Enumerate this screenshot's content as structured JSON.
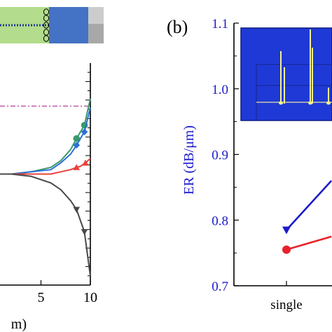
{
  "panel_b_label": "(b)",
  "chart_data": [
    {
      "panel": "a",
      "type": "line",
      "title": "",
      "xlabel": "m)",
      "ylabel": "",
      "x_ticks": [
        5,
        10
      ],
      "xlim": [
        0,
        10
      ],
      "ylim": [
        0,
        1
      ],
      "y_tick_count_right": 24,
      "threshold": {
        "y": 0.806,
        "color": "#b0409a",
        "style": "dash-dot"
      },
      "series": [
        {
          "color": "#3a9a6a",
          "marker": "circle",
          "x": [
            0,
            2,
            4,
            6,
            7,
            8,
            8.6,
            9,
            9.4,
            10
          ],
          "y": [
            0.5,
            0.5,
            0.51,
            0.53,
            0.56,
            0.61,
            0.66,
            0.69,
            0.72,
            0.84
          ],
          "marker_x": [
            8.6,
            9.4
          ]
        },
        {
          "color": "#2b6fd6",
          "marker": "diamond",
          "x": [
            0,
            2,
            4,
            6,
            7,
            8,
            8.6,
            9,
            9.4,
            10
          ],
          "y": [
            0.5,
            0.5,
            0.51,
            0.52,
            0.55,
            0.59,
            0.63,
            0.66,
            0.69,
            0.8
          ],
          "marker_x": [
            8.6,
            9.4
          ]
        },
        {
          "color": "#e8413c",
          "marker": "triangle-up",
          "x": [
            0,
            2,
            4,
            6,
            7,
            8,
            8.6,
            9,
            9.5,
            10
          ],
          "y": [
            0.5,
            0.5,
            0.5,
            0.5,
            0.51,
            0.52,
            0.53,
            0.535,
            0.55,
            0.57
          ],
          "marker_x": [
            8.6,
            9.5
          ]
        },
        {
          "color": "#484848",
          "marker": "triangle-down",
          "x": [
            0,
            2,
            4,
            6,
            7,
            8,
            8.6,
            9,
            9.4,
            10
          ],
          "y": [
            0.5,
            0.5,
            0.49,
            0.46,
            0.43,
            0.38,
            0.34,
            0.29,
            0.24,
            0.04
          ],
          "marker_x": [
            8.6,
            9.4
          ]
        }
      ]
    },
    {
      "panel": "b",
      "type": "line",
      "title": "",
      "xlabel": "",
      "ylabel": "ER (dB/μm)",
      "ylabel_color": "#1a1acc",
      "categories": [
        "single"
      ],
      "ylim": [
        0.7,
        1.1
      ],
      "y_ticks": [
        0.7,
        0.8,
        0.9,
        1.0,
        1.1
      ],
      "y_tick_labels": [
        "0.7",
        "0.8",
        "0.9",
        "1.0",
        "1.1"
      ],
      "series": [
        {
          "color": "#1a1acc",
          "marker": "triangle-down",
          "x": [
            0,
            0.44
          ],
          "y": [
            0.785,
            0.86
          ]
        },
        {
          "color": "#e8222a",
          "marker": "circle",
          "x": [
            0,
            0.44
          ],
          "y": [
            0.755,
            0.775
          ]
        }
      ]
    }
  ]
}
